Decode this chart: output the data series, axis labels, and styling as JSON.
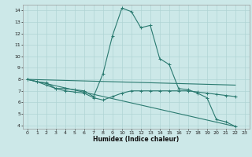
{
  "xlabel": "Humidex (Indice chaleur)",
  "bg_color": "#cce8e8",
  "line_color": "#2a7a70",
  "grid_color": "#b0d4d4",
  "xlim": [
    -0.5,
    23.5
  ],
  "ylim": [
    3.7,
    14.5
  ],
  "xticks": [
    0,
    1,
    2,
    3,
    4,
    5,
    6,
    7,
    8,
    9,
    10,
    11,
    12,
    13,
    14,
    15,
    16,
    17,
    18,
    19,
    20,
    21,
    22,
    23
  ],
  "yticks": [
    4,
    5,
    6,
    7,
    8,
    9,
    10,
    11,
    12,
    13,
    14
  ],
  "series_main": {
    "x": [
      0,
      1,
      2,
      3,
      4,
      5,
      6,
      7,
      8,
      9,
      10,
      11,
      12,
      13,
      14,
      15,
      16,
      17,
      18,
      19,
      20,
      21,
      22
    ],
    "y": [
      8.0,
      7.8,
      7.7,
      7.2,
      7.2,
      7.1,
      7.0,
      6.5,
      8.5,
      11.8,
      14.2,
      13.9,
      12.5,
      12.7,
      9.8,
      9.3,
      7.2,
      7.1,
      6.8,
      6.4,
      4.5,
      4.3,
      3.9
    ]
  },
  "series_lower": {
    "x": [
      0,
      1,
      2,
      3,
      4,
      5,
      6,
      7,
      8,
      9,
      10,
      11,
      12,
      13,
      14,
      15,
      16,
      17,
      18,
      19,
      20,
      21,
      22
    ],
    "y": [
      8.0,
      7.8,
      7.5,
      7.2,
      7.0,
      6.9,
      6.8,
      6.4,
      6.2,
      6.5,
      6.8,
      7.0,
      7.0,
      7.0,
      7.0,
      7.0,
      7.0,
      7.0,
      6.9,
      6.8,
      6.7,
      6.6,
      6.5
    ]
  },
  "series_flat": {
    "x": [
      0,
      22
    ],
    "y": [
      8.0,
      7.5
    ]
  },
  "series_diag": {
    "x": [
      0,
      22
    ],
    "y": [
      8.0,
      3.9
    ]
  }
}
